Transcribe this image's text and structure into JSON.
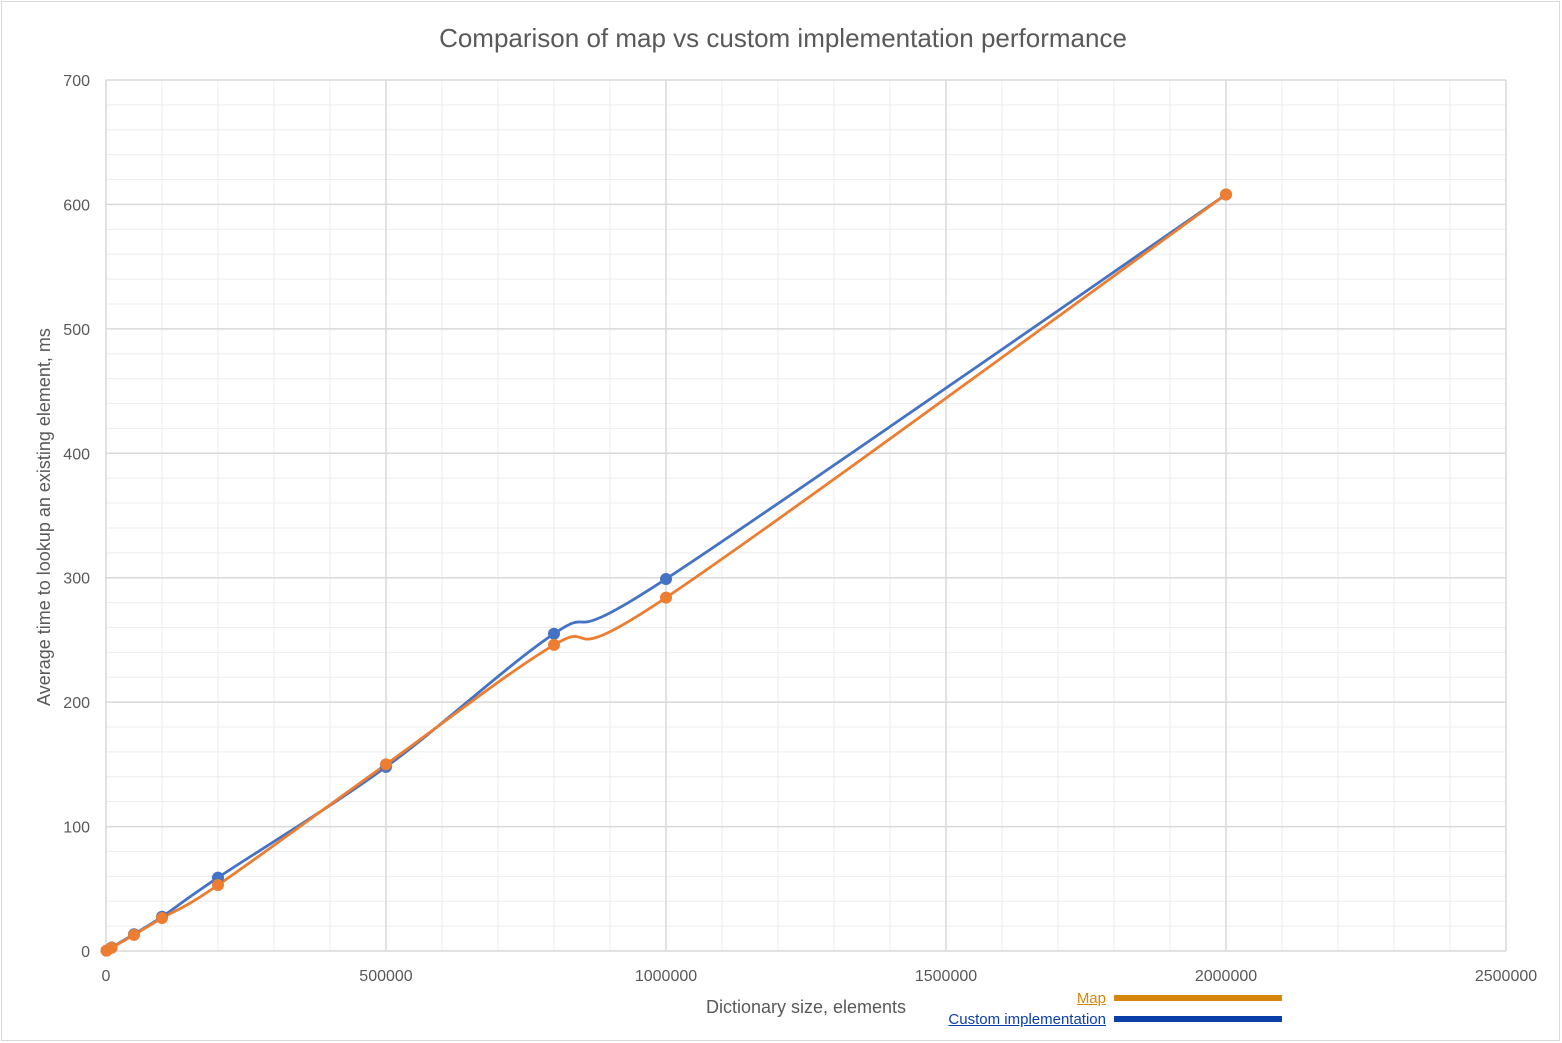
{
  "colors": {
    "custom_series": "#4472C4",
    "map_series": "#ED7D31",
    "legend_map": "#D4870A",
    "legend_custom": "#0B3FA8",
    "major_grid": "#d9d9d9",
    "minor_grid": "#ededed",
    "text": "#595959"
  },
  "chart_data": {
    "type": "line",
    "title": "Comparison of map vs custom implementation performance",
    "xlabel": "Dictionary size, elements",
    "ylabel": "Average time to lookup an existing element, ms",
    "xlim": [
      0,
      2500000
    ],
    "ylim": [
      0,
      700
    ],
    "x_ticks": [
      0,
      500000,
      1000000,
      1500000,
      2000000,
      2500000
    ],
    "y_ticks": [
      0,
      100,
      200,
      300,
      400,
      500,
      600,
      700
    ],
    "x_tick_labels": [
      "0",
      "500000",
      "1000000",
      "1500000",
      "2000000",
      "2500000"
    ],
    "y_tick_labels": [
      "0",
      "100",
      "200",
      "300",
      "400",
      "500",
      "600",
      "700"
    ],
    "grid": true,
    "minor_grid": true,
    "smoothed": true,
    "markers": true,
    "legend_position": "bottom-right",
    "series": [
      {
        "name": "Custom implementation",
        "color": "#4472C4",
        "points": [
          {
            "x": 1000,
            "y": 0.3
          },
          {
            "x": 10000,
            "y": 2.8
          },
          {
            "x": 50000,
            "y": 13.5
          },
          {
            "x": 100000,
            "y": 27.5
          },
          {
            "x": 200000,
            "y": 59
          },
          {
            "x": 500000,
            "y": 148
          },
          {
            "x": 800000,
            "y": 255
          },
          {
            "x": 1000000,
            "y": 299
          },
          {
            "x": 2000000,
            "y": 608
          }
        ]
      },
      {
        "name": "Map",
        "color": "#ED7D31",
        "points": [
          {
            "x": 1000,
            "y": 0.3
          },
          {
            "x": 10000,
            "y": 2.6
          },
          {
            "x": 50000,
            "y": 13
          },
          {
            "x": 100000,
            "y": 26.5
          },
          {
            "x": 200000,
            "y": 53
          },
          {
            "x": 500000,
            "y": 150
          },
          {
            "x": 800000,
            "y": 246
          },
          {
            "x": 1000000,
            "y": 284
          },
          {
            "x": 2000000,
            "y": 608
          }
        ]
      }
    ]
  },
  "legend": {
    "map_label": "Map",
    "custom_label": "Custom implementation"
  }
}
